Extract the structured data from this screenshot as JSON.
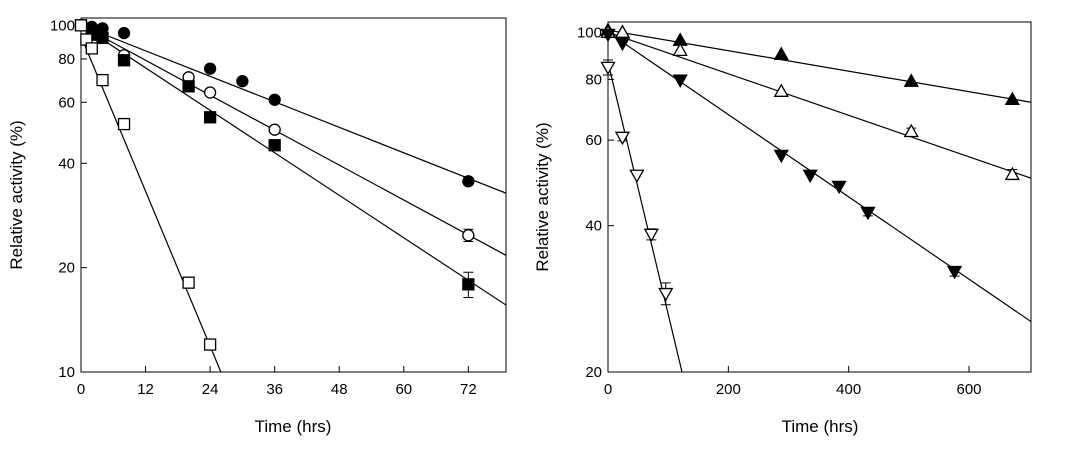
{
  "chart_data": [
    {
      "type": "scatter",
      "x_label": "Time (hrs)",
      "y_label": "Relative activity (%)",
      "log_y": true,
      "xlim": [
        0,
        79
      ],
      "ylim": [
        10,
        105
      ],
      "xticks": [
        0,
        12,
        24,
        36,
        48,
        60,
        72
      ],
      "yticks": [
        10,
        20,
        40,
        60,
        80,
        100
      ],
      "series": [
        {
          "marker": "circle",
          "color": "#000000",
          "fill": "#000000",
          "x": [
            0,
            2,
            4,
            8,
            24,
            30,
            36,
            72
          ],
          "values": [
            100,
            99,
            98,
            95,
            75,
            69,
            61,
            35.5
          ],
          "errors": [
            null,
            null,
            null,
            null,
            null,
            1.2,
            null,
            0.8
          ],
          "fit": {
            "x": [
              0,
              79
            ],
            "values": [
              100,
              32.8
            ]
          }
        },
        {
          "marker": "circle",
          "color": "#000000",
          "fill": "#ffffff",
          "x": [
            0,
            8,
            20,
            24,
            36,
            72
          ],
          "values": [
            100,
            82,
            70.8,
            64,
            50,
            24.8
          ],
          "errors": [
            null,
            null,
            null,
            null,
            1,
            1
          ],
          "fit": {
            "x": [
              0,
              79
            ],
            "values": [
              100,
              21.7
            ]
          }
        },
        {
          "marker": "square",
          "color": "#000000",
          "fill": "#000000",
          "x": [
            0,
            2,
            4,
            8,
            20,
            24,
            36,
            72
          ],
          "values": [
            100,
            94,
            92,
            79.3,
            66.7,
            54.3,
            45.1,
            17.9
          ],
          "errors": [
            null,
            null,
            null,
            null,
            null,
            1.5,
            null,
            1.5
          ],
          "fit": {
            "x": [
              0,
              79
            ],
            "values": [
              100,
              15.6
            ]
          }
        },
        {
          "marker": "square",
          "color": "#000000",
          "fill": "#ffffff",
          "x": [
            0,
            1,
            2,
            4,
            8,
            20,
            24
          ],
          "values": [
            100,
            91,
            85.8,
            69.5,
            51.9,
            18.1,
            12
          ],
          "errors": [
            null,
            3,
            null,
            null,
            null,
            null,
            null
          ],
          "fit": {
            "x": [
              0,
              26
            ],
            "values": [
              93,
              10
            ]
          }
        }
      ]
    },
    {
      "type": "scatter",
      "x_label": "Time (hrs)",
      "y_label": "Relative activity (%)",
      "log_y": true,
      "xlim": [
        0,
        703
      ],
      "ylim": [
        20,
        105
      ],
      "xticks": [
        0,
        200,
        400,
        600
      ],
      "yticks": [
        20,
        40,
        60,
        80,
        100
      ],
      "series": [
        {
          "marker": "triangle-up",
          "color": "#000000",
          "fill": "#000000",
          "x": [
            0,
            24,
            120,
            288,
            504,
            672
          ],
          "values": [
            101,
            100,
            96.3,
            90.1,
            79.3,
            72.8
          ],
          "errors": [
            null,
            null,
            null,
            null,
            null,
            null
          ],
          "fit": {
            "x": [
              0,
              703
            ],
            "values": [
              101,
              71.8
            ]
          }
        },
        {
          "marker": "triangle-up",
          "color": "#000000",
          "fill": "#ffffff",
          "x": [
            0,
            24,
            120,
            288,
            504,
            672
          ],
          "values": [
            100,
            100,
            91.8,
            75.6,
            62.5,
            51
          ],
          "errors": [
            null,
            null,
            null,
            null,
            1,
            1.2
          ],
          "fit": {
            "x": [
              0,
              703
            ],
            "values": [
              100,
              50.1
            ]
          }
        },
        {
          "marker": "triangle-down",
          "color": "#000000",
          "fill": "#000000",
          "x": [
            0,
            24,
            120,
            288,
            336,
            384,
            432,
            576
          ],
          "values": [
            99,
            94.9,
            79.7,
            55.8,
            50.8,
            48.2,
            42.6,
            32.2
          ],
          "errors": [
            null,
            null,
            null,
            null,
            null,
            null,
            0.7,
            0.7
          ],
          "fit": {
            "x": [
              0,
              703
            ],
            "values": [
              100,
              25.4
            ]
          }
        },
        {
          "marker": "triangle-down",
          "color": "#000000",
          "fill": "#ffffff",
          "x": [
            0,
            24,
            48,
            72,
            96
          ],
          "values": [
            84.7,
            60.8,
            50.8,
            38.4,
            29
          ],
          "errors": [
            3,
            1,
            null,
            1,
            1.5
          ],
          "fit": {
            "x": [
              0,
              123
            ],
            "values": [
              86.8,
              20
            ]
          }
        }
      ]
    }
  ]
}
